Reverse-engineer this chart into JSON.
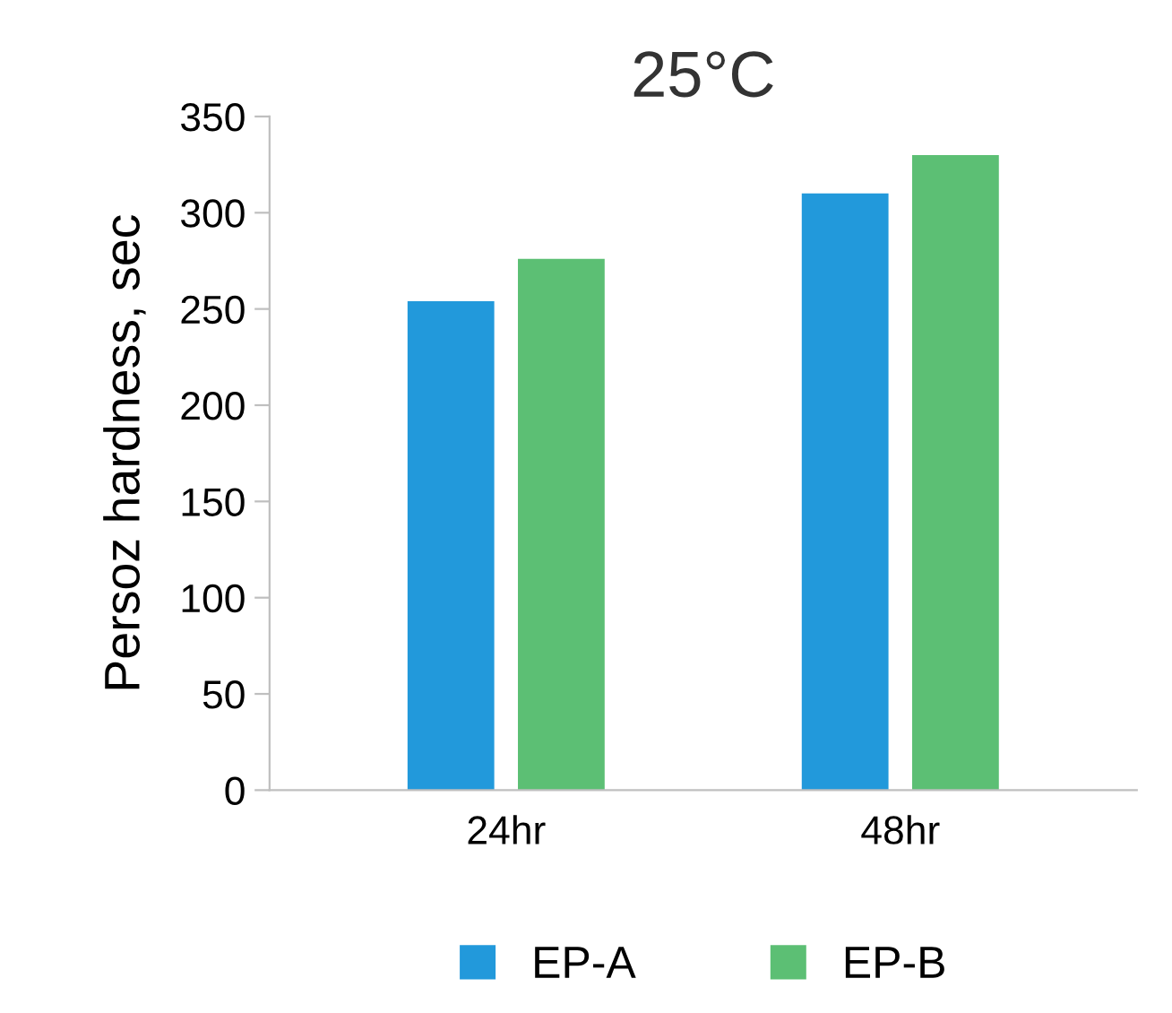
{
  "chart_data": {
    "type": "bar",
    "title": "25°C",
    "ylabel": "Persoz hardness, sec",
    "categories": [
      "24hr",
      "48hr"
    ],
    "series": [
      {
        "name": "EP-A",
        "color": "#2299db",
        "values": [
          254,
          310
        ]
      },
      {
        "name": "EP-B",
        "color": "#5cbf74",
        "values": [
          276,
          330
        ]
      }
    ],
    "ylim": [
      0,
      350
    ],
    "yticks": [
      0,
      50,
      100,
      150,
      200,
      250,
      300,
      350
    ],
    "grid": false,
    "legend": "bottom"
  }
}
